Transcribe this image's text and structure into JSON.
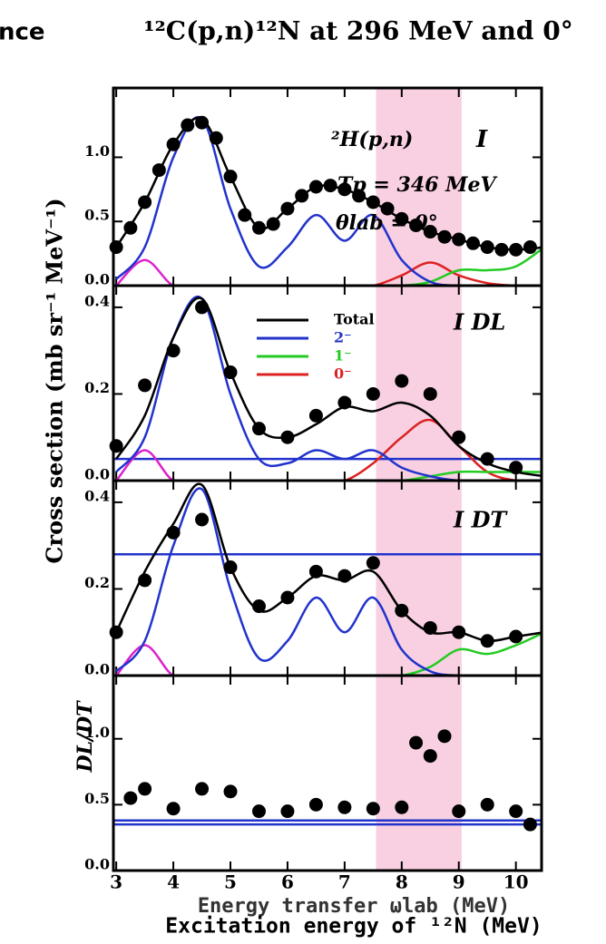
{
  "fragment": "nce",
  "title": "¹²C(p,n)¹²N at 296 MeV and 0°",
  "ylabel": "Cross section (mb sr⁻¹ MeV⁻¹)",
  "xlabel": "Excitation energy of ¹²N (MeV)",
  "xlabel2": "Energy transfer ωlab (MeV)",
  "xlim": [
    2.95,
    10.45
  ],
  "xticks": [
    3,
    4,
    5,
    6,
    7,
    8,
    9,
    10
  ],
  "highlight": [
    7.55,
    9.05
  ],
  "chart_data": [
    {
      "type": "line",
      "ylim": [
        0,
        1.54
      ],
      "yticks": [
        {
          "value": 0,
          "label": "0.0"
        },
        0.5,
        {
          "value": 1,
          "label": "1.0"
        }
      ],
      "annotations": [
        "²H(p,n)",
        "I",
        "Tp = 346 MeV",
        "θlab = 0°"
      ],
      "x": [
        3.0,
        3.5,
        4.0,
        4.5,
        5.0,
        5.5,
        6.0,
        6.5,
        7.0,
        7.5,
        8.0,
        8.5,
        9.0,
        9.5,
        10.0,
        10.5
      ],
      "series": [
        {
          "color": "#dd22cc",
          "values": [
            0,
            0.2,
            0,
            0,
            0,
            0,
            0,
            0,
            0,
            0,
            0,
            0,
            0,
            0,
            0,
            0
          ]
        },
        {
          "name": "0⁻",
          "color": "#dd2222",
          "values": [
            0,
            0,
            0,
            0,
            0,
            0,
            0,
            0,
            0,
            0,
            0.08,
            0.18,
            0.08,
            0.02,
            0,
            0
          ]
        },
        {
          "name": "1⁻",
          "color": "#22cc22",
          "values": [
            0,
            0,
            0,
            0,
            0,
            0,
            0,
            0,
            0,
            0,
            0,
            0.03,
            0.12,
            0.12,
            0.15,
            0.3
          ]
        },
        {
          "name": "2⁻",
          "color": "#2233cc",
          "values": [
            0.05,
            0.3,
            1.0,
            1.3,
            0.6,
            0.15,
            0.3,
            0.55,
            0.35,
            0.55,
            0.2,
            0.03,
            0,
            0,
            0,
            0
          ]
        },
        {
          "name": "Total",
          "color": "#000000",
          "values": [
            0.3,
            0.65,
            1.1,
            1.3,
            0.85,
            0.45,
            0.6,
            0.77,
            0.75,
            0.65,
            0.52,
            0.42,
            0.36,
            0.3,
            0.28,
            0.3
          ]
        }
      ],
      "points": {
        "color": "#000000",
        "x": [
          3.0,
          3.25,
          3.5,
          3.75,
          4.0,
          4.25,
          4.5,
          4.75,
          5.0,
          5.25,
          5.5,
          5.75,
          6.0,
          6.25,
          6.5,
          6.75,
          7.0,
          7.25,
          7.5,
          7.75,
          8.0,
          8.25,
          8.5,
          8.75,
          9.0,
          9.25,
          9.5,
          9.75,
          10.0,
          10.25
        ],
        "values": [
          0.3,
          0.45,
          0.65,
          0.9,
          1.1,
          1.25,
          1.27,
          1.15,
          0.85,
          0.55,
          0.45,
          0.48,
          0.6,
          0.7,
          0.77,
          0.78,
          0.75,
          0.7,
          0.65,
          0.6,
          0.52,
          0.47,
          0.42,
          0.38,
          0.36,
          0.33,
          0.3,
          0.28,
          0.28,
          0.3
        ]
      }
    },
    {
      "type": "line",
      "ylim": [
        0,
        0.45
      ],
      "yticks": [
        {
          "value": 0,
          "label": "0.0"
        },
        0.2,
        0.4
      ],
      "annotations": [
        "I DL"
      ],
      "legend": true,
      "hlines": [
        0.05
      ],
      "x": [
        3.0,
        3.5,
        4.0,
        4.5,
        5.0,
        5.5,
        6.0,
        6.5,
        7.0,
        7.5,
        8.0,
        8.5,
        9.0,
        9.5,
        10.0,
        10.5
      ],
      "series": [
        {
          "color": "#dd22cc",
          "values": [
            0,
            0.07,
            0,
            0,
            0,
            0,
            0,
            0,
            0,
            0,
            0,
            0,
            0,
            0,
            0,
            0
          ]
        },
        {
          "name": "0⁻",
          "color": "#dd2222",
          "values": [
            0,
            0,
            0,
            0,
            0,
            0,
            0,
            0,
            0,
            0.04,
            0.1,
            0.14,
            0.08,
            0.02,
            0,
            0
          ]
        },
        {
          "name": "1⁻",
          "color": "#22cc22",
          "values": [
            0,
            0,
            0,
            0,
            0,
            0,
            0,
            0,
            0,
            0,
            0,
            0.01,
            0.02,
            0.02,
            0.02,
            0.02
          ]
        },
        {
          "name": "2⁻",
          "color": "#2233cc",
          "values": [
            0.02,
            0.1,
            0.33,
            0.42,
            0.2,
            0.05,
            0.04,
            0.07,
            0.05,
            0.07,
            0.03,
            0.01,
            0,
            0,
            0,
            0
          ]
        },
        {
          "name": "Total",
          "color": "#000000",
          "values": [
            0.05,
            0.15,
            0.33,
            0.42,
            0.25,
            0.12,
            0.1,
            0.13,
            0.17,
            0.16,
            0.18,
            0.15,
            0.08,
            0.04,
            0.02,
            0.01
          ]
        }
      ],
      "points": {
        "color": "#000000",
        "x": [
          3.0,
          3.5,
          4.0,
          4.5,
          5.0,
          5.5,
          6.0,
          6.5,
          7.0,
          7.5,
          8.0,
          8.5,
          9.0,
          9.5,
          10.0
        ],
        "values": [
          0.08,
          0.22,
          0.3,
          0.4,
          0.25,
          0.12,
          0.1,
          0.15,
          0.18,
          0.2,
          0.23,
          0.2,
          0.1,
          0.05,
          0.03
        ]
      }
    },
    {
      "type": "line",
      "ylim": [
        0,
        0.45
      ],
      "yticks": [
        {
          "value": 0,
          "label": "0.0"
        },
        0.2,
        0.4
      ],
      "annotations": [
        "I DT"
      ],
      "hlines": [
        0.28
      ],
      "x": [
        3.0,
        3.5,
        4.0,
        4.5,
        5.0,
        5.5,
        6.0,
        6.5,
        7.0,
        7.5,
        8.0,
        8.5,
        9.0,
        9.5,
        10.0,
        10.5
      ],
      "series": [
        {
          "color": "#dd22cc",
          "values": [
            0,
            0.07,
            0,
            0,
            0,
            0,
            0,
            0,
            0,
            0,
            0,
            0,
            0,
            0,
            0,
            0
          ]
        },
        {
          "name": "0⁻",
          "color": "#dd2222",
          "values": [
            0,
            0,
            0,
            0,
            0,
            0,
            0,
            0,
            0,
            0,
            0,
            0,
            0,
            0,
            0,
            0
          ]
        },
        {
          "name": "1⁻",
          "color": "#22cc22",
          "values": [
            0,
            0,
            0,
            0,
            0,
            0,
            0,
            0,
            0,
            0,
            0,
            0.02,
            0.06,
            0.05,
            0.07,
            0.1
          ]
        },
        {
          "name": "2⁻",
          "color": "#2233cc",
          "values": [
            0.01,
            0.08,
            0.3,
            0.43,
            0.2,
            0.04,
            0.08,
            0.18,
            0.1,
            0.18,
            0.06,
            0.01,
            0,
            0,
            0,
            0
          ]
        },
        {
          "name": "Total",
          "color": "#000000",
          "values": [
            0.1,
            0.24,
            0.35,
            0.44,
            0.25,
            0.15,
            0.18,
            0.23,
            0.22,
            0.24,
            0.15,
            0.1,
            0.1,
            0.08,
            0.09,
            0.1
          ]
        }
      ],
      "points": {
        "color": "#000000",
        "x": [
          3.0,
          3.5,
          4.0,
          4.5,
          5.0,
          5.5,
          6.0,
          6.5,
          7.0,
          7.5,
          8.0,
          8.5,
          9.0,
          9.5,
          10.0
        ],
        "values": [
          0.1,
          0.22,
          0.33,
          0.36,
          0.25,
          0.16,
          0.18,
          0.24,
          0.23,
          0.26,
          0.15,
          0.11,
          0.1,
          0.08,
          0.09
        ]
      }
    },
    {
      "type": "scatter",
      "ylim": [
        0,
        1.48
      ],
      "yticks": [
        {
          "value": 0,
          "label": "0.0"
        },
        0.5,
        {
          "value": 1,
          "label": "1.0"
        }
      ],
      "ylabel": "DL/DT",
      "hlines": [
        0.35,
        0.38
      ],
      "hline_color": "#2233cc",
      "xtick_labels": true,
      "points": {
        "color": "#000000",
        "x": [
          3.25,
          3.5,
          4.0,
          4.5,
          5.0,
          5.5,
          6.0,
          6.5,
          7.0,
          7.5,
          8.0,
          8.25,
          8.5,
          8.75,
          9.0,
          9.5,
          10.0,
          10.25
        ],
        "values": [
          0.55,
          0.62,
          0.47,
          0.62,
          0.6,
          0.45,
          0.45,
          0.5,
          0.48,
          0.47,
          0.48,
          0.97,
          0.87,
          1.02,
          0.45,
          0.5,
          0.45,
          0.35
        ]
      }
    }
  ]
}
